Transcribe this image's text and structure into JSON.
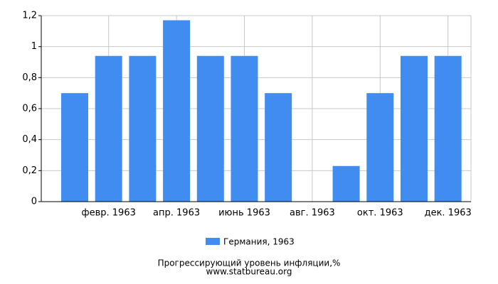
{
  "chart_data": {
    "type": "bar",
    "title": "Прогрессирующий уровень инфляции,%",
    "source": "www.statbureau.org",
    "categories": [
      null,
      "февр. 1963",
      null,
      "апр. 1963",
      null,
      "июнь 1963",
      null,
      "авг. 1963",
      null,
      "окт. 1963",
      null,
      "дек. 1963"
    ],
    "series": [
      {
        "name": "Германия, 1963",
        "color": "#418cf0",
        "values": [
          0.7,
          0.94,
          0.94,
          1.17,
          0.94,
          0.94,
          0.7,
          0,
          0.23,
          0.7,
          0.94,
          0.94
        ]
      }
    ],
    "ylim": [
      0,
      1.2
    ],
    "yticks": [
      0,
      {
        "value": 0.2,
        "label": "0,2"
      },
      {
        "value": 0.4,
        "label": "0,4"
      },
      {
        "value": 0.6,
        "label": "0,6"
      },
      {
        "value": 0.8,
        "label": "0,8"
      },
      1,
      {
        "value": 1.2,
        "label": "1,2"
      }
    ],
    "grid": true
  }
}
